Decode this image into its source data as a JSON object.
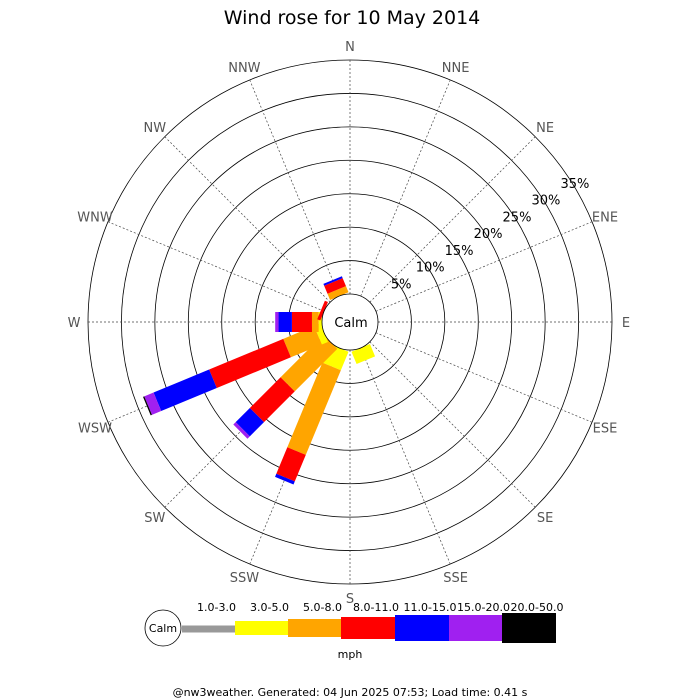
{
  "chart_data": {
    "type": "wind-rose",
    "title": "Wind rose for 10 May 2014",
    "directions": [
      "N",
      "NNE",
      "NE",
      "ENE",
      "E",
      "ESE",
      "SE",
      "SSE",
      "S",
      "SSW",
      "SW",
      "WSW",
      "W",
      "WNW",
      "NW",
      "NNW"
    ],
    "radial_ticks": [
      "5%",
      "10%",
      "15%",
      "20%",
      "25%",
      "30%",
      "35%"
    ],
    "radial_max": 35,
    "calm_label": "Calm",
    "grid": true,
    "speed_bins": [
      {
        "label": "1.0-3.0",
        "color": "#999999"
      },
      {
        "label": "3.0-5.0",
        "color": "#ffff00"
      },
      {
        "label": "5.0-8.0",
        "color": "#ffa500"
      },
      {
        "label": "8.0-11.0",
        "color": "#ff0000"
      },
      {
        "label": "11.0-15.0",
        "color": "#0000ff"
      },
      {
        "label": "15.0-20.0",
        "color": "#a020f0"
      },
      {
        "label": "20.0-50.0",
        "color": "#000000"
      }
    ],
    "units": "mph",
    "series": [
      {
        "direction": "SSE",
        "cumulative": [
          0,
          2.0,
          2.0,
          2.0,
          2.0,
          2.0,
          2.0
        ]
      },
      {
        "direction": "SSW",
        "cumulative": [
          0,
          3.0,
          16.7,
          21.0,
          21.5,
          21.5,
          21.5
        ]
      },
      {
        "direction": "SW",
        "cumulative": [
          0,
          0,
          9.0,
          15.5,
          18.5,
          19.0,
          19.0
        ]
      },
      {
        "direction": "WSW",
        "cumulative": [
          0,
          1.0,
          6.0,
          18.0,
          27.0,
          28.5,
          28.7
        ]
      },
      {
        "direction": "W",
        "cumulative": [
          0,
          0.5,
          1.5,
          4.5,
          6.5,
          7.0,
          7.0
        ]
      },
      {
        "direction": "WNW",
        "cumulative": [
          0,
          0,
          0,
          0.5,
          0.5,
          0.5,
          0.5
        ]
      },
      {
        "direction": "NW",
        "cumulative": [
          0,
          0,
          0,
          0,
          0,
          0,
          0
        ]
      },
      {
        "direction": "NNW",
        "cumulative": [
          0,
          0,
          1.0,
          2.3,
          2.6,
          2.6,
          2.6
        ]
      }
    ]
  },
  "footer": "@nw3weather. Generated: 04 Jun 2025 07:53; Load time: 0.41 s"
}
